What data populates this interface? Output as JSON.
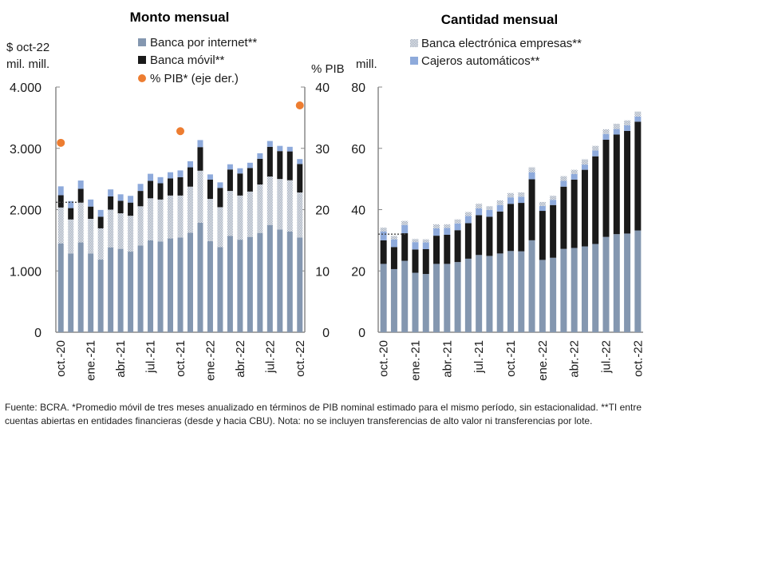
{
  "chart_data": [
    {
      "type": "bar",
      "stacked": true,
      "title": "Monto mensual",
      "ylabel": "$ oct-22 mil. mill.",
      "y2label": "% PIB",
      "ylim": [
        0,
        4000
      ],
      "y2lim": [
        0,
        40
      ],
      "yticks": [
        "0",
        "1.000",
        "2.000",
        "3.000",
        "4.000"
      ],
      "y2ticks": [
        "0",
        "10",
        "20",
        "30",
        "40"
      ],
      "categories": [
        "oct.-20",
        "nov.-20",
        "dic.-20",
        "ene.-21",
        "feb.-21",
        "mar.-21",
        "abr.-21",
        "may.-21",
        "jun.-21",
        "jul.-21",
        "ago.-21",
        "sep.-21",
        "oct.-21",
        "nov.-21",
        "dic.-21",
        "ene.-22",
        "feb.-22",
        "mar.-22",
        "abr.-22",
        "may.-22",
        "jun.-22",
        "jul.-22",
        "ago.-22",
        "sep.-22",
        "oct.-22"
      ],
      "xtick_labels": [
        "oct.-20",
        "ene.-21",
        "abr.-21",
        "jul.-21",
        "oct.-21",
        "ene.-22",
        "abr.-22",
        "jul.-22",
        "oct.-22"
      ],
      "series": [
        {
          "name": "Banca por internet**",
          "color": "#8497b0",
          "values": [
            1450,
            1285,
            1465,
            1285,
            1185,
            1385,
            1360,
            1315,
            1415,
            1500,
            1480,
            1530,
            1545,
            1625,
            1785,
            1485,
            1390,
            1570,
            1510,
            1555,
            1620,
            1750,
            1675,
            1645,
            1545
          ]
        },
        {
          "name": "Banca electrónica empresas**",
          "color": "#bfc8d6",
          "pattern": "checker",
          "values": [
            585,
            555,
            650,
            565,
            510,
            615,
            580,
            585,
            640,
            685,
            685,
            700,
            685,
            750,
            850,
            690,
            650,
            735,
            720,
            740,
            790,
            790,
            825,
            835,
            735
          ]
        },
        {
          "name": "Banca móvil**",
          "color": "#1a1a1a",
          "values": [
            200,
            185,
            225,
            200,
            190,
            215,
            205,
            215,
            250,
            285,
            265,
            280,
            300,
            315,
            385,
            315,
            315,
            350,
            360,
            385,
            420,
            485,
            455,
            470,
            465
          ]
        },
        {
          "name": "Cajeros automáticos**",
          "color": "#8eaadb",
          "values": [
            145,
            115,
            135,
            115,
            110,
            115,
            105,
            110,
            115,
            115,
            100,
            100,
            110,
            100,
            115,
            85,
            90,
            85,
            85,
            85,
            90,
            95,
            85,
            75,
            80
          ]
        }
      ],
      "secondary_series": {
        "name": "% PIB* (eje der.)",
        "color": "#ed7d31",
        "marker": "circle",
        "points": [
          {
            "category": "oct.-20",
            "value": 30.9
          },
          {
            "category": "oct.-21",
            "value": 32.8
          },
          {
            "category": "oct.-22",
            "value": 37.0
          }
        ]
      },
      "reference_line": {
        "value": 2120,
        "style": "dotted",
        "span_categories": [
          "oct.-20",
          "dic.-20"
        ]
      },
      "legend": [
        "Banca por internet**",
        "Banca móvil**",
        "% PIB* (eje der.)"
      ]
    },
    {
      "type": "bar",
      "stacked": true,
      "title": "Cantidad mensual",
      "ylabel": "mill.",
      "ylim": [
        0,
        80
      ],
      "yticks": [
        "0",
        "20",
        "40",
        "60",
        "80"
      ],
      "categories": [
        "oct.-20",
        "nov.-20",
        "dic.-20",
        "ene.-21",
        "feb.-21",
        "mar.-21",
        "abr.-21",
        "may.-21",
        "jun.-21",
        "jul.-21",
        "ago.-21",
        "sep.-21",
        "oct.-21",
        "nov.-21",
        "dic.-21",
        "ene.-22",
        "feb.-22",
        "mar.-22",
        "abr.-22",
        "may.-22",
        "jun.-22",
        "jul.-22",
        "ago.-22",
        "sep.-22",
        "oct.-22"
      ],
      "xtick_labels": [
        "oct.-20",
        "ene.-21",
        "abr.-21",
        "jul.-21",
        "oct.-21",
        "ene.-22",
        "abr.-22",
        "jul.-22",
        "oct.-22"
      ],
      "series": [
        {
          "name": "Banca por internet**",
          "color": "#8497b0",
          "values": [
            22.3,
            20.6,
            23.3,
            19.4,
            19.0,
            22.3,
            22.3,
            22.9,
            24.0,
            25.2,
            24.9,
            25.7,
            26.5,
            26.4,
            30.0,
            23.6,
            24.3,
            27.2,
            27.5,
            28.0,
            28.8,
            31.1,
            32.0,
            32.2,
            33.2
          ]
        },
        {
          "name": "Banca móvil**",
          "color": "#1a1a1a",
          "values": [
            7.7,
            7.2,
            9.0,
            7.6,
            8.1,
            9.2,
            9.5,
            10.4,
            11.6,
            13.0,
            12.8,
            13.7,
            15.4,
            15.8,
            19.9,
            16.0,
            17.2,
            20.3,
            22.3,
            25.0,
            28.6,
            31.7,
            32.5,
            33.5,
            35.5
          ]
        },
        {
          "name": "Cajeros automáticos**",
          "color": "#8eaadb",
          "values": [
            2.9,
            2.5,
            2.7,
            2.4,
            2.2,
            2.4,
            2.2,
            2.2,
            2.3,
            2.2,
            2.2,
            2.1,
            2.1,
            2.0,
            2.3,
            1.6,
            1.7,
            1.9,
            1.8,
            1.7,
            1.9,
            1.9,
            1.8,
            1.8,
            1.7
          ]
        },
        {
          "name": "Banca electrónica empresas**",
          "color": "#bfc8d6",
          "pattern": "checker",
          "values": [
            1.2,
            1.1,
            1.3,
            1.0,
            1.0,
            1.3,
            1.2,
            1.3,
            1.3,
            1.5,
            1.2,
            1.5,
            1.4,
            1.4,
            1.6,
            1.3,
            1.3,
            1.5,
            1.4,
            1.7,
            1.5,
            1.5,
            1.7,
            1.6,
            1.6
          ]
        }
      ],
      "reference_line": {
        "value": 32,
        "style": "dotted",
        "span_categories": [
          "oct.-20",
          "dic.-20"
        ]
      },
      "legend": [
        "Banca electrónica empresas**",
        "Cajeros automáticos**"
      ]
    }
  ],
  "footer": "Fuente: BCRA. *Promedio móvil de tres meses anualizado en términos de PIB nominal estimado para el mismo período, sin estacionalidad. **TI entre cuentas abiertas en entidades financieras (desde y hacia CBU). Nota: no se incluyen transferencias de alto valor ni transferencias por lote."
}
